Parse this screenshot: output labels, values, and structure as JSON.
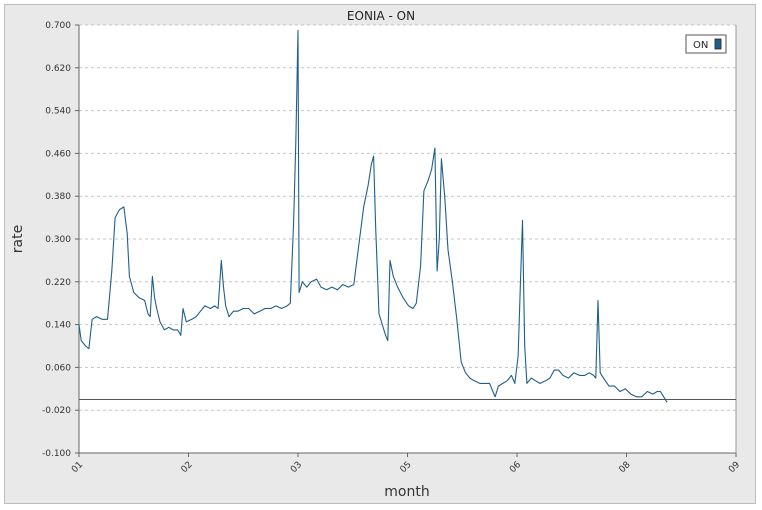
{
  "chart_data": {
    "type": "line",
    "title": "EONIA - ON",
    "xlabel": "month",
    "ylabel": "rate",
    "x_ticks": [
      "01",
      "02",
      "03",
      "05",
      "06",
      "08",
      "09"
    ],
    "x_tick_positions": [
      0,
      1,
      2,
      3,
      4,
      5,
      6
    ],
    "xlim": [
      0,
      6
    ],
    "ylim": [
      -0.1,
      0.7
    ],
    "y_ticks": [
      "-0.100",
      "-0.020",
      "0.060",
      "0.140",
      "0.220",
      "0.300",
      "0.380",
      "0.460",
      "0.540",
      "0.620",
      "0.700"
    ],
    "y_tick_values": [
      -0.1,
      -0.02,
      0.06,
      0.14,
      0.22,
      0.3,
      0.38,
      0.46,
      0.54,
      0.62,
      0.7
    ],
    "grid": true,
    "legend_position": "top-right",
    "reference_line": 0.0,
    "series": [
      {
        "name": "ON",
        "color": "#1f5f8b",
        "points": [
          [
            0.0,
            0.14
          ],
          [
            0.02,
            0.11
          ],
          [
            0.06,
            0.1
          ],
          [
            0.09,
            0.095
          ],
          [
            0.12,
            0.15
          ],
          [
            0.16,
            0.155
          ],
          [
            0.21,
            0.15
          ],
          [
            0.26,
            0.15
          ],
          [
            0.3,
            0.24
          ],
          [
            0.33,
            0.34
          ],
          [
            0.37,
            0.355
          ],
          [
            0.41,
            0.36
          ],
          [
            0.44,
            0.31
          ],
          [
            0.46,
            0.23
          ],
          [
            0.5,
            0.2
          ],
          [
            0.55,
            0.19
          ],
          [
            0.6,
            0.185
          ],
          [
            0.63,
            0.16
          ],
          [
            0.65,
            0.155
          ],
          [
            0.67,
            0.23
          ],
          [
            0.69,
            0.19
          ],
          [
            0.71,
            0.17
          ],
          [
            0.74,
            0.145
          ],
          [
            0.78,
            0.13
          ],
          [
            0.82,
            0.135
          ],
          [
            0.86,
            0.13
          ],
          [
            0.9,
            0.13
          ],
          [
            0.93,
            0.12
          ],
          [
            0.95,
            0.17
          ],
          [
            0.98,
            0.145
          ],
          [
            1.03,
            0.15
          ],
          [
            1.07,
            0.155
          ],
          [
            1.11,
            0.165
          ],
          [
            1.15,
            0.175
          ],
          [
            1.2,
            0.17
          ],
          [
            1.24,
            0.175
          ],
          [
            1.27,
            0.17
          ],
          [
            1.3,
            0.26
          ],
          [
            1.32,
            0.21
          ],
          [
            1.34,
            0.175
          ],
          [
            1.37,
            0.155
          ],
          [
            1.41,
            0.165
          ],
          [
            1.45,
            0.165
          ],
          [
            1.5,
            0.17
          ],
          [
            1.55,
            0.17
          ],
          [
            1.6,
            0.16
          ],
          [
            1.65,
            0.165
          ],
          [
            1.7,
            0.17
          ],
          [
            1.75,
            0.17
          ],
          [
            1.8,
            0.175
          ],
          [
            1.85,
            0.17
          ],
          [
            1.9,
            0.175
          ],
          [
            1.93,
            0.18
          ],
          [
            1.96,
            0.33
          ],
          [
            1.98,
            0.48
          ],
          [
            2.0,
            0.69
          ],
          [
            2.01,
            0.2
          ],
          [
            2.04,
            0.22
          ],
          [
            2.08,
            0.21
          ],
          [
            2.12,
            0.22
          ],
          [
            2.17,
            0.225
          ],
          [
            2.21,
            0.21
          ],
          [
            2.26,
            0.205
          ],
          [
            2.31,
            0.21
          ],
          [
            2.36,
            0.205
          ],
          [
            2.41,
            0.215
          ],
          [
            2.46,
            0.21
          ],
          [
            2.51,
            0.215
          ],
          [
            2.55,
            0.28
          ],
          [
            2.6,
            0.36
          ],
          [
            2.64,
            0.4
          ],
          [
            2.67,
            0.44
          ],
          [
            2.69,
            0.455
          ],
          [
            2.71,
            0.32
          ],
          [
            2.74,
            0.16
          ],
          [
            2.77,
            0.14
          ],
          [
            2.8,
            0.12
          ],
          [
            2.82,
            0.11
          ],
          [
            2.84,
            0.26
          ],
          [
            2.87,
            0.23
          ],
          [
            2.91,
            0.21
          ],
          [
            2.96,
            0.19
          ],
          [
            3.01,
            0.175
          ],
          [
            3.05,
            0.17
          ],
          [
            3.08,
            0.18
          ],
          [
            3.12,
            0.25
          ],
          [
            3.15,
            0.39
          ],
          [
            3.19,
            0.41
          ],
          [
            3.22,
            0.43
          ],
          [
            3.25,
            0.47
          ],
          [
            3.27,
            0.24
          ],
          [
            3.29,
            0.3
          ],
          [
            3.31,
            0.45
          ],
          [
            3.34,
            0.38
          ],
          [
            3.37,
            0.28
          ],
          [
            3.41,
            0.22
          ],
          [
            3.45,
            0.15
          ],
          [
            3.49,
            0.07
          ],
          [
            3.53,
            0.05
          ],
          [
            3.57,
            0.04
          ],
          [
            3.61,
            0.035
          ],
          [
            3.66,
            0.03
          ],
          [
            3.7,
            0.03
          ],
          [
            3.75,
            0.03
          ],
          [
            3.78,
            0.015
          ],
          [
            3.8,
            0.005
          ],
          [
            3.83,
            0.025
          ],
          [
            3.87,
            0.03
          ],
          [
            3.91,
            0.035
          ],
          [
            3.95,
            0.045
          ],
          [
            3.98,
            0.03
          ],
          [
            4.01,
            0.08
          ],
          [
            4.03,
            0.21
          ],
          [
            4.05,
            0.335
          ],
          [
            4.07,
            0.1
          ],
          [
            4.09,
            0.03
          ],
          [
            4.13,
            0.04
          ],
          [
            4.17,
            0.035
          ],
          [
            4.21,
            0.03
          ],
          [
            4.26,
            0.035
          ],
          [
            4.3,
            0.04
          ],
          [
            4.34,
            0.055
          ],
          [
            4.38,
            0.055
          ],
          [
            4.42,
            0.045
          ],
          [
            4.47,
            0.04
          ],
          [
            4.52,
            0.05
          ],
          [
            4.57,
            0.045
          ],
          [
            4.62,
            0.045
          ],
          [
            4.66,
            0.05
          ],
          [
            4.7,
            0.045
          ],
          [
            4.72,
            0.04
          ],
          [
            4.74,
            0.185
          ],
          [
            4.76,
            0.05
          ],
          [
            4.79,
            0.04
          ],
          [
            4.84,
            0.025
          ],
          [
            4.89,
            0.025
          ],
          [
            4.94,
            0.015
          ],
          [
            4.99,
            0.02
          ],
          [
            5.04,
            0.01
          ],
          [
            5.09,
            0.005
          ],
          [
            5.14,
            0.005
          ],
          [
            5.19,
            0.015
          ],
          [
            5.24,
            0.01
          ],
          [
            5.28,
            0.015
          ],
          [
            5.31,
            0.015
          ],
          [
            5.34,
            0.005
          ],
          [
            5.37,
            -0.005
          ]
        ]
      }
    ]
  }
}
